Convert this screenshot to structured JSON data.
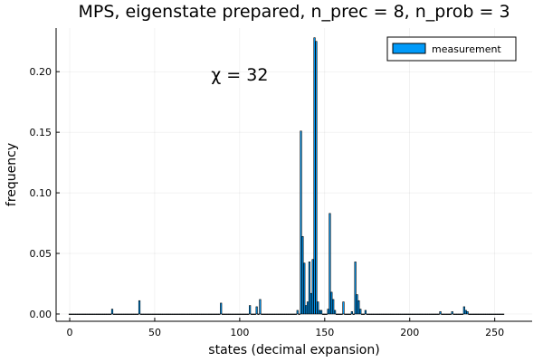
{
  "chart_data": {
    "type": "bar",
    "title": "MPS, eigenstate prepared, n_prec = 8, n_prob = 3",
    "xlabel": "states (decimal expansion)",
    "ylabel": "frequency",
    "xlim": [
      -8,
      272
    ],
    "ylim": [
      -0.006,
      0.236
    ],
    "xticks": [
      0,
      50,
      100,
      150,
      200,
      250
    ],
    "yticks": [
      0.0,
      0.05,
      0.1,
      0.15,
      0.2
    ],
    "ytick_labels": [
      "0.00",
      "0.05",
      "0.10",
      "0.15",
      "0.20"
    ],
    "annotation": "χ = 32",
    "annotation_pos": {
      "x": 100,
      "y": 0.198
    },
    "legend": {
      "position": "top-right"
    },
    "grid": true,
    "colors": {
      "bar_fill": "#009af9",
      "bar_stroke": "#000000"
    },
    "series": [
      {
        "name": "measurement",
        "x": [
          25,
          41,
          89,
          106,
          110,
          112,
          134,
          136,
          137,
          138,
          139,
          140,
          141,
          142,
          143,
          144,
          145,
          146,
          147,
          148,
          152,
          153,
          154,
          155,
          156,
          161,
          166,
          168,
          169,
          170,
          171,
          174,
          218,
          225,
          232,
          233,
          234
        ],
        "values": [
          0.004,
          0.011,
          0.009,
          0.007,
          0.006,
          0.012,
          0.003,
          0.151,
          0.064,
          0.042,
          0.007,
          0.01,
          0.043,
          0.017,
          0.045,
          0.228,
          0.225,
          0.01,
          0.003,
          0.003,
          0.004,
          0.083,
          0.018,
          0.012,
          0.003,
          0.01,
          0.002,
          0.043,
          0.016,
          0.011,
          0.004,
          0.003,
          0.002,
          0.002,
          0.006,
          0.003,
          0.002
        ]
      }
    ]
  }
}
